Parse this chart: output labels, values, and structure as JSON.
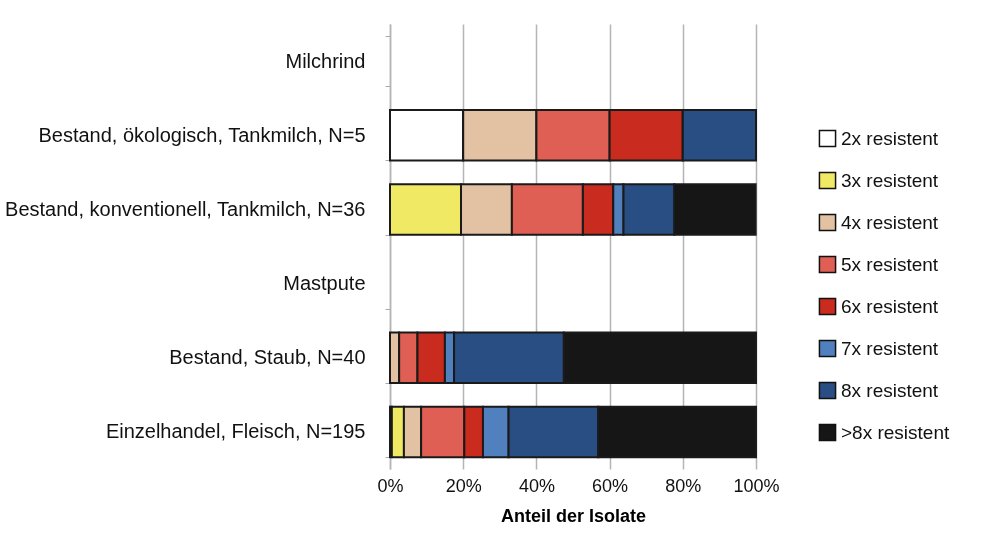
{
  "chart_data": {
    "type": "bar",
    "orientation": "horizontal",
    "stacked": true,
    "xlabel": "Anteil der Isolate",
    "categories": [
      "Milchrind",
      "Bestand, ökologisch, Tankmilch, N=5",
      "Bestand, konventionell, Tankmilch, N=36",
      "Mastpute",
      "Bestand, Staub, N=40",
      "Einzelhandel, Fleisch, N=195"
    ],
    "series": [
      {
        "name": "2x resistent",
        "color": "#ffffff",
        "values": [
          null,
          20,
          0,
          null,
          0,
          0.5
        ]
      },
      {
        "name": "3x resistent",
        "color": "#f0e964",
        "values": [
          null,
          0,
          19.4,
          null,
          0,
          3.3
        ]
      },
      {
        "name": "4x resistent",
        "color": "#e3c1a3",
        "values": [
          null,
          20,
          13.9,
          null,
          2.5,
          4.7
        ]
      },
      {
        "name": "5x resistent",
        "color": "#e05f55",
        "values": [
          null,
          20,
          19.4,
          null,
          5,
          11.8
        ]
      },
      {
        "name": "6x resistent",
        "color": "#c92b1e",
        "values": [
          null,
          20,
          8.3,
          null,
          7.5,
          5.1
        ]
      },
      {
        "name": "7x resistent",
        "color": "#5080be",
        "values": [
          null,
          0,
          2.8,
          null,
          2.5,
          7.0
        ]
      },
      {
        "name": "8x resistent",
        "color": "#294e84",
        "values": [
          null,
          20,
          13.9,
          null,
          30,
          24.5
        ]
      },
      {
        "name": ">8x resistent",
        "color": "#161616",
        "values": [
          null,
          0,
          22.2,
          null,
          52.5,
          43.1
        ]
      }
    ],
    "xlim": [
      0,
      100
    ],
    "xticks": [
      {
        "value": 0,
        "label": "0%"
      },
      {
        "value": 20,
        "label": "20%"
      },
      {
        "value": 40,
        "label": "40%"
      },
      {
        "value": 60,
        "label": "60%"
      },
      {
        "value": 80,
        "label": "80%"
      },
      {
        "value": 100,
        "label": "100%"
      }
    ],
    "grid": "x",
    "legend": "right"
  }
}
